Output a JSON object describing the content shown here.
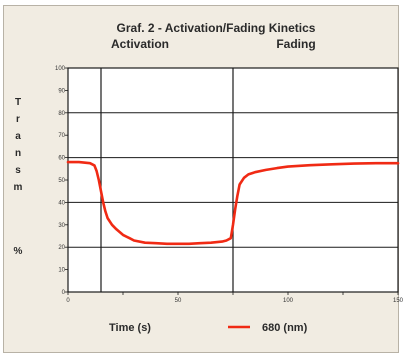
{
  "chart_data": {
    "type": "line",
    "title": "Graf. 2 - Activation/Fading Kinetics",
    "phase_labels": [
      "Activation",
      "Fading"
    ],
    "phase_boundaries": [
      15,
      75
    ],
    "xlabel": "Time (s)",
    "ylabel_letters": [
      "T",
      "r",
      "a",
      "n",
      "s",
      "m"
    ],
    "ylabel_unit": "%",
    "xlim": [
      0,
      150
    ],
    "ylim": [
      0,
      100
    ],
    "x_ticks": [
      0,
      25,
      50,
      75,
      100,
      125,
      150
    ],
    "x_tick_labels": [
      "0",
      "",
      "50",
      "",
      "100",
      "",
      "150"
    ],
    "y_ticks": [
      0,
      10,
      20,
      30,
      40,
      50,
      60,
      70,
      80,
      90,
      100
    ],
    "grid": "major-y",
    "series": [
      {
        "name": "680 (nm)",
        "color": "#f02a14",
        "x": [
          0,
          5,
          10,
          12,
          13,
          14,
          15,
          16,
          17,
          18,
          20,
          22,
          25,
          28,
          30,
          35,
          40,
          45,
          50,
          55,
          60,
          65,
          70,
          72,
          74,
          75,
          76,
          77,
          78,
          80,
          82,
          85,
          90,
          95,
          100,
          110,
          120,
          130,
          140,
          150
        ],
        "y": [
          58,
          58,
          57.5,
          56.5,
          54,
          50,
          45,
          40,
          36,
          33,
          30,
          28,
          25.5,
          24,
          23,
          22,
          21.8,
          21.5,
          21.5,
          21.5,
          21.8,
          22,
          22.5,
          23,
          24,
          30,
          37,
          43,
          48,
          51,
          52.5,
          53.5,
          54.5,
          55.3,
          56,
          56.6,
          57,
          57.3,
          57.5,
          57.5
        ]
      }
    ],
    "legend_position": "bottom-center"
  }
}
